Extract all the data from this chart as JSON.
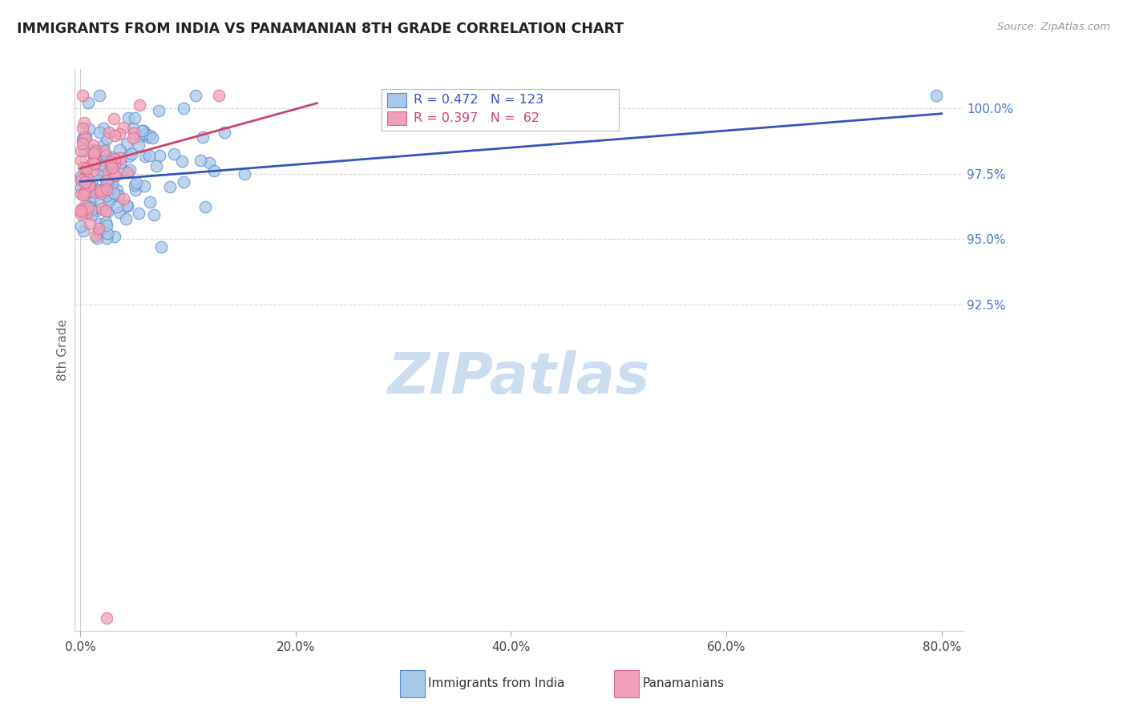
{
  "title": "IMMIGRANTS FROM INDIA VS PANAMANIAN 8TH GRADE CORRELATION CHART",
  "source": "Source: ZipAtlas.com",
  "ylabel": "8th Grade",
  "blue_R": 0.472,
  "blue_N": 123,
  "pink_R": 0.397,
  "pink_N": 62,
  "blue_color": "#A8C8E8",
  "pink_color": "#F0A0B8",
  "blue_edge_color": "#5588CC",
  "pink_edge_color": "#DD6688",
  "blue_line_color": "#3355BB",
  "pink_line_color": "#CC4466",
  "grid_color": "#CCCCCC",
  "background_color": "#FFFFFF",
  "title_color": "#222222",
  "right_axis_color": "#4477CC",
  "watermark_color": "#CCDDF0",
  "legend_blue_label": "Immigrants from India",
  "legend_pink_label": "Panamanians",
  "xlim": [
    -0.5,
    82
  ],
  "ylim": [
    80.0,
    101.5
  ],
  "x_ticks": [
    0,
    20,
    40,
    60,
    80
  ],
  "x_tick_labels": [
    "0.0%",
    "20.0%",
    "40.0%",
    "60.0%",
    "80.0%"
  ],
  "y_ticks": [
    92.5,
    95.0,
    97.5,
    100.0
  ],
  "y_tick_labels": [
    "92.5%",
    "95.0%",
    "97.5%",
    "100.0%"
  ]
}
